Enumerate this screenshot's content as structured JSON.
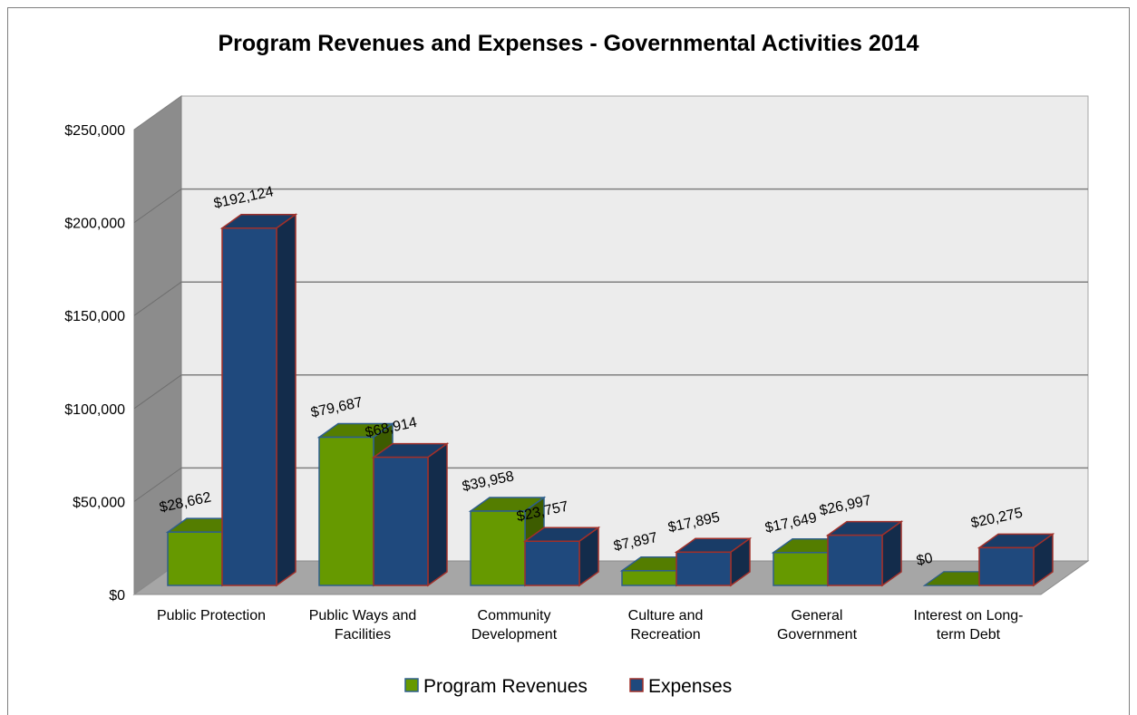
{
  "chart_data": {
    "type": "bar",
    "title": "Program Revenues and Expenses - Governmental  Activities 2014",
    "xlabel": "",
    "ylabel": "",
    "ylim": [
      0,
      250000
    ],
    "yticks": [
      "$0",
      "$50,000",
      "$100,000",
      "$150,000",
      "$200,000",
      "$250,000"
    ],
    "grid": true,
    "legend_position": "bottom",
    "categories": [
      [
        "Public Protection"
      ],
      [
        "Public Ways and",
        "Facilities"
      ],
      [
        "Community",
        "Development"
      ],
      [
        "Culture and",
        "Recreation"
      ],
      [
        "General",
        "Government"
      ],
      [
        "Interest on Long-",
        "term Debt"
      ]
    ],
    "series": [
      {
        "name": "Program Revenues",
        "color": "#669900",
        "values": [
          28662,
          79687,
          39958,
          7897,
          17649,
          0
        ],
        "labels": [
          "$28,662",
          "$79,687",
          "$39,958",
          "$7,897",
          "$17,649",
          "$0"
        ]
      },
      {
        "name": "Expenses",
        "color": "#1f497d",
        "values": [
          192124,
          68914,
          23757,
          17895,
          26997,
          20275
        ],
        "labels": [
          "$192,124",
          "$68,914",
          "$23,757",
          "$17,895",
          "$26,997",
          "$20,275"
        ]
      }
    ]
  }
}
